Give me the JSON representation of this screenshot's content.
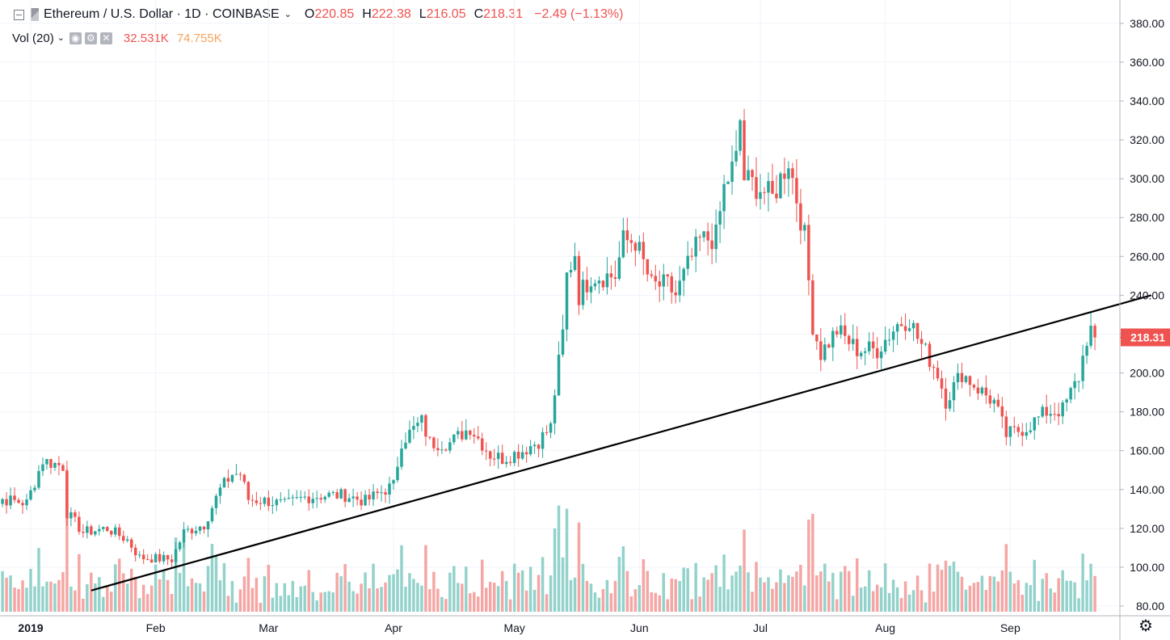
{
  "header": {
    "symbol_title": "Ethereum / U.S. Dollar · 1D · COINBASE",
    "ohlc": [
      {
        "label": "O",
        "value": "220.85"
      },
      {
        "label": "H",
        "value": "222.38"
      },
      {
        "label": "L",
        "value": "216.05"
      },
      {
        "label": "C",
        "value": "218.31"
      }
    ],
    "change": "−2.49 (−1.13%)"
  },
  "volume_legend": {
    "title": "Vol (20)",
    "icons": [
      "eye-icon",
      "gear-icon",
      "close-icon"
    ],
    "value1": "32.531K",
    "value2": "74.755K"
  },
  "colors": {
    "up": "#26a69a",
    "down": "#ef5350",
    "vol_up": "#93d2cb",
    "vol_down": "#f5a6a4",
    "grid": "#f0f3fa",
    "trendline": "#000000"
  },
  "chart_data": {
    "type": "candlestick",
    "price_axis": {
      "range": [
        75,
        392
      ],
      "ticks": [
        "80.00",
        "100.00",
        "120.00",
        "140.00",
        "160.00",
        "180.00",
        "200.00",
        "220.00",
        "240.00",
        "260.00",
        "280.00",
        "300.00",
        "320.00",
        "340.00",
        "360.00",
        "380.00"
      ]
    },
    "last_price_label": "218.31",
    "time_axis": {
      "labels": [
        {
          "text": "2019",
          "date": "2019-01-01",
          "bold": true
        },
        {
          "text": "Feb",
          "date": "2019-02-01"
        },
        {
          "text": "Mar",
          "date": "2019-03-01"
        },
        {
          "text": "Apr",
          "date": "2019-04-01"
        },
        {
          "text": "May",
          "date": "2019-05-01"
        },
        {
          "text": "Jun",
          "date": "2019-06-01"
        },
        {
          "text": "Jul",
          "date": "2019-07-01"
        },
        {
          "text": "Aug",
          "date": "2019-08-01"
        },
        {
          "text": "Sep",
          "date": "2019-09-01"
        }
      ]
    },
    "first_date": "2018-12-20",
    "trendline": {
      "start": {
        "date": "2019-01-16",
        "price": 88
      },
      "end": {
        "date": "2019-10-06",
        "price": 240
      }
    },
    "close_anchors": [
      [
        "2018-12-20",
        125
      ],
      [
        "2018-12-25",
        135
      ],
      [
        "2018-12-31",
        133
      ],
      [
        "2019-01-04",
        155
      ],
      [
        "2019-01-09",
        152
      ],
      [
        "2019-01-10",
        128
      ],
      [
        "2019-01-14",
        118
      ],
      [
        "2019-01-20",
        120
      ],
      [
        "2019-01-25",
        114
      ],
      [
        "2019-01-28",
        105
      ],
      [
        "2019-02-05",
        104
      ],
      [
        "2019-02-08",
        118
      ],
      [
        "2019-02-13",
        122
      ],
      [
        "2019-02-17",
        140
      ],
      [
        "2019-02-20",
        148
      ],
      [
        "2019-02-22",
        148
      ],
      [
        "2019-02-24",
        135
      ],
      [
        "2019-03-01",
        134
      ],
      [
        "2019-03-05",
        132
      ],
      [
        "2019-03-10",
        136
      ],
      [
        "2019-03-15",
        137
      ],
      [
        "2019-03-20",
        137
      ],
      [
        "2019-03-25",
        134
      ],
      [
        "2019-03-30",
        140
      ],
      [
        "2019-04-01",
        142
      ],
      [
        "2019-04-03",
        165
      ],
      [
        "2019-04-08",
        175
      ],
      [
        "2019-04-10",
        164
      ],
      [
        "2019-04-15",
        164
      ],
      [
        "2019-04-20",
        172
      ],
      [
        "2019-04-25",
        158
      ],
      [
        "2019-04-28",
        156
      ],
      [
        "2019-05-03",
        160
      ],
      [
        "2019-05-07",
        165
      ],
      [
        "2019-05-10",
        172
      ],
      [
        "2019-05-11",
        190
      ],
      [
        "2019-05-13",
        220
      ],
      [
        "2019-05-14",
        250
      ],
      [
        "2019-05-16",
        262
      ],
      [
        "2019-05-17",
        240
      ],
      [
        "2019-05-20",
        250
      ],
      [
        "2019-05-26",
        250
      ],
      [
        "2019-05-28",
        268
      ],
      [
        "2019-05-31",
        268
      ],
      [
        "2019-06-04",
        245
      ],
      [
        "2019-06-08",
        245
      ],
      [
        "2019-06-10",
        240
      ],
      [
        "2019-06-13",
        255
      ],
      [
        "2019-06-16",
        268
      ],
      [
        "2019-06-20",
        270
      ],
      [
        "2019-06-22",
        295
      ],
      [
        "2019-06-25",
        310
      ],
      [
        "2019-06-26",
        330
      ],
      [
        "2019-06-27",
        300
      ],
      [
        "2019-07-01",
        295
      ],
      [
        "2019-07-04",
        290
      ],
      [
        "2019-07-08",
        310
      ],
      [
        "2019-07-10",
        290
      ],
      [
        "2019-07-12",
        270
      ],
      [
        "2019-07-14",
        225
      ],
      [
        "2019-07-16",
        210
      ],
      [
        "2019-07-20",
        222
      ],
      [
        "2019-07-25",
        212
      ],
      [
        "2019-07-30",
        212
      ],
      [
        "2019-08-04",
        225
      ],
      [
        "2019-08-07",
        228
      ],
      [
        "2019-08-09",
        218
      ],
      [
        "2019-08-14",
        200
      ],
      [
        "2019-08-16",
        186
      ],
      [
        "2019-08-20",
        200
      ],
      [
        "2019-08-24",
        192
      ],
      [
        "2019-08-28",
        185
      ],
      [
        "2019-08-31",
        168
      ],
      [
        "2019-09-05",
        172
      ],
      [
        "2019-09-10",
        180
      ],
      [
        "2019-09-14",
        181
      ],
      [
        "2019-09-18",
        198
      ],
      [
        "2019-09-20",
        218
      ],
      [
        "2019-09-21",
        222
      ],
      [
        "2019-09-22",
        218.31
      ]
    ],
    "volume_axis_bottom_price": 75
  }
}
